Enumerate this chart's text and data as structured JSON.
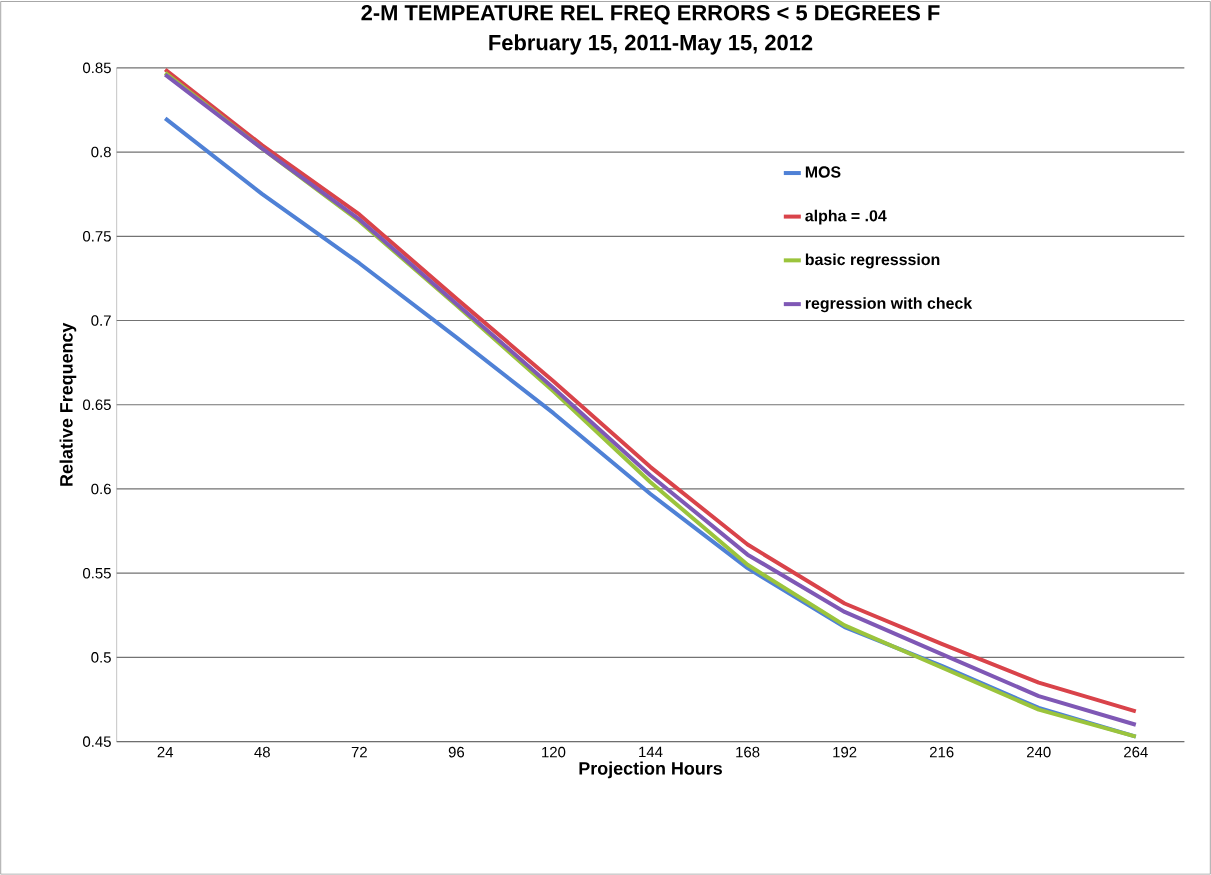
{
  "chart_data": {
    "type": "line",
    "title": "2-M TEMPEATURE REL FREQ ERRORS < 5 DEGREES F",
    "subtitle": "February 15, 2011-May 15, 2012",
    "xlabel": "Projection Hours",
    "ylabel": "Relative Frequency",
    "categories": [
      "24",
      "48",
      "72",
      "96",
      "120",
      "144",
      "168",
      "192",
      "216",
      "240",
      "264"
    ],
    "series": [
      {
        "name": "MOS",
        "color": "#4f81d6",
        "values": [
          0.82,
          0.775,
          0.734,
          0.69,
          0.645,
          0.597,
          0.553,
          0.518,
          0.495,
          0.47,
          0.453
        ]
      },
      {
        "name": "alpha = .04",
        "color": "#d9434a",
        "values": [
          0.849,
          0.804,
          0.763,
          0.713,
          0.664,
          0.613,
          0.567,
          0.532,
          0.508,
          0.485,
          0.468
        ]
      },
      {
        "name": "basic regresssion",
        "color": "#9bc43c",
        "values": [
          0.847,
          0.802,
          0.759,
          0.709,
          0.658,
          0.604,
          0.555,
          0.519,
          0.494,
          0.469,
          0.453
        ]
      },
      {
        "name": "regression with check",
        "color": "#7f58b5",
        "values": [
          0.846,
          0.802,
          0.76,
          0.71,
          0.66,
          0.608,
          0.561,
          0.527,
          0.502,
          0.477,
          0.46
        ]
      }
    ],
    "ylim": [
      0.45,
      0.85
    ],
    "yticks": [
      0.45,
      0.5,
      0.55,
      0.6,
      0.65,
      0.7,
      0.75,
      0.8,
      0.85
    ],
    "grid": "y",
    "legend": "right",
    "marker": "none",
    "line_style": "solid"
  }
}
